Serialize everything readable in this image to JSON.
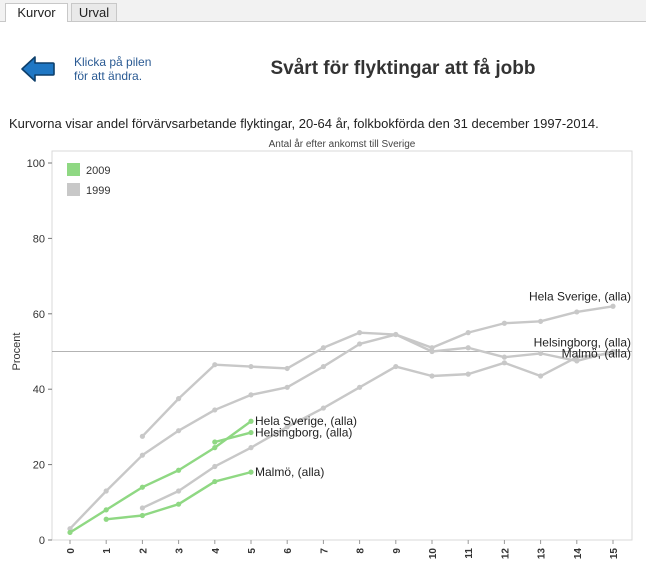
{
  "tabs": [
    {
      "label": "Kurvor",
      "active": true
    },
    {
      "label": "Urval",
      "active": false
    }
  ],
  "nav": {
    "back_hint_line1": "Klicka på pilen",
    "back_hint_line2": "för att ändra.",
    "arrow_icon": "left-arrow-icon",
    "arrow_color": "#1f77c4"
  },
  "page_title": "Svårt för flyktingar att få jobb",
  "description": "Kurvorna visar andel förvärvsarbetande flyktingar, 20-64 år, folkbokförda den 31 december 1997-2014.",
  "chart_data": {
    "type": "line",
    "title": "Antal år efter ankomst till Sverige",
    "xlabel": "",
    "ylabel": "Procent",
    "x": [
      0,
      1,
      2,
      3,
      4,
      5,
      6,
      7,
      8,
      9,
      10,
      11,
      12,
      13,
      14,
      15
    ],
    "xlim": [
      0,
      15
    ],
    "ylim": [
      0,
      100
    ],
    "yticks": [
      0,
      20,
      40,
      60,
      80,
      100
    ],
    "reference_line": 50,
    "legend": [
      {
        "label": "2009",
        "color": "#8fd883"
      },
      {
        "label": "1999",
        "color": "#c8c8c8"
      }
    ],
    "series": [
      {
        "name": "Hela Sverige, (alla)",
        "group": "1999",
        "color": "#c8c8c8",
        "x": [
          0,
          1,
          2,
          3,
          4,
          5,
          6,
          7,
          8,
          9,
          10,
          11,
          12,
          13,
          14,
          15
        ],
        "values": [
          3,
          13,
          22.5,
          29,
          34.5,
          38.5,
          40.5,
          46,
          52,
          54.5,
          51,
          55,
          57.5,
          58,
          60.5,
          62
        ]
      },
      {
        "name": "Helsingborg, (alla)",
        "group": "1999",
        "color": "#c8c8c8",
        "x": [
          2,
          3,
          4,
          5,
          6,
          7,
          8,
          9,
          10,
          11,
          12,
          13,
          14,
          15
        ],
        "values": [
          27.5,
          37.5,
          46.5,
          46,
          45.5,
          51,
          55,
          54.5,
          50,
          51,
          48.5,
          49.5,
          47.5,
          50
        ]
      },
      {
        "name": "Malmö, (alla)",
        "group": "1999",
        "color": "#c8c8c8",
        "x": [
          2,
          3,
          4,
          5,
          6,
          7,
          8,
          9,
          10,
          11,
          12,
          13,
          14,
          15
        ],
        "values": [
          8.5,
          13,
          19.5,
          24.5,
          30,
          35,
          40.5,
          46,
          43.5,
          44,
          47,
          43.5,
          48.5,
          49.5
        ]
      },
      {
        "name": "Hela Sverige, (alla)",
        "group": "2009",
        "color": "#8fd883",
        "x": [
          0,
          1,
          2,
          3,
          4,
          5
        ],
        "values": [
          2,
          8,
          14,
          18.5,
          24.5,
          31.5
        ]
      },
      {
        "name": "Helsingborg, (alla)",
        "group": "2009",
        "color": "#8fd883",
        "x": [
          1,
          2,
          3,
          4,
          5
        ],
        "values": [
          5.5,
          6.5,
          9.5,
          15.5,
          18
        ]
      },
      {
        "name": "Malmö, (alla)",
        "group": "2009",
        "color": "#8fd883",
        "x": [
          4,
          5
        ],
        "values": [
          26,
          28.5
        ]
      }
    ],
    "labels_1999": [
      {
        "text": "Hela Sverige, (alla)",
        "x": 15,
        "y": 62
      },
      {
        "text": "Helsingborg, (alla)",
        "x": 15,
        "y": 50
      },
      {
        "text": "Malmö, (alla)",
        "x": 15,
        "y": 49.5
      }
    ],
    "labels_2009": [
      {
        "text": "Hela Sverige, (alla)",
        "x": 5,
        "y": 31.5
      },
      {
        "text": "Helsingborg, (alla)",
        "x": 5,
        "y": 28.5
      },
      {
        "text": "Malmö, (alla)",
        "x": 5,
        "y": 18
      }
    ]
  }
}
